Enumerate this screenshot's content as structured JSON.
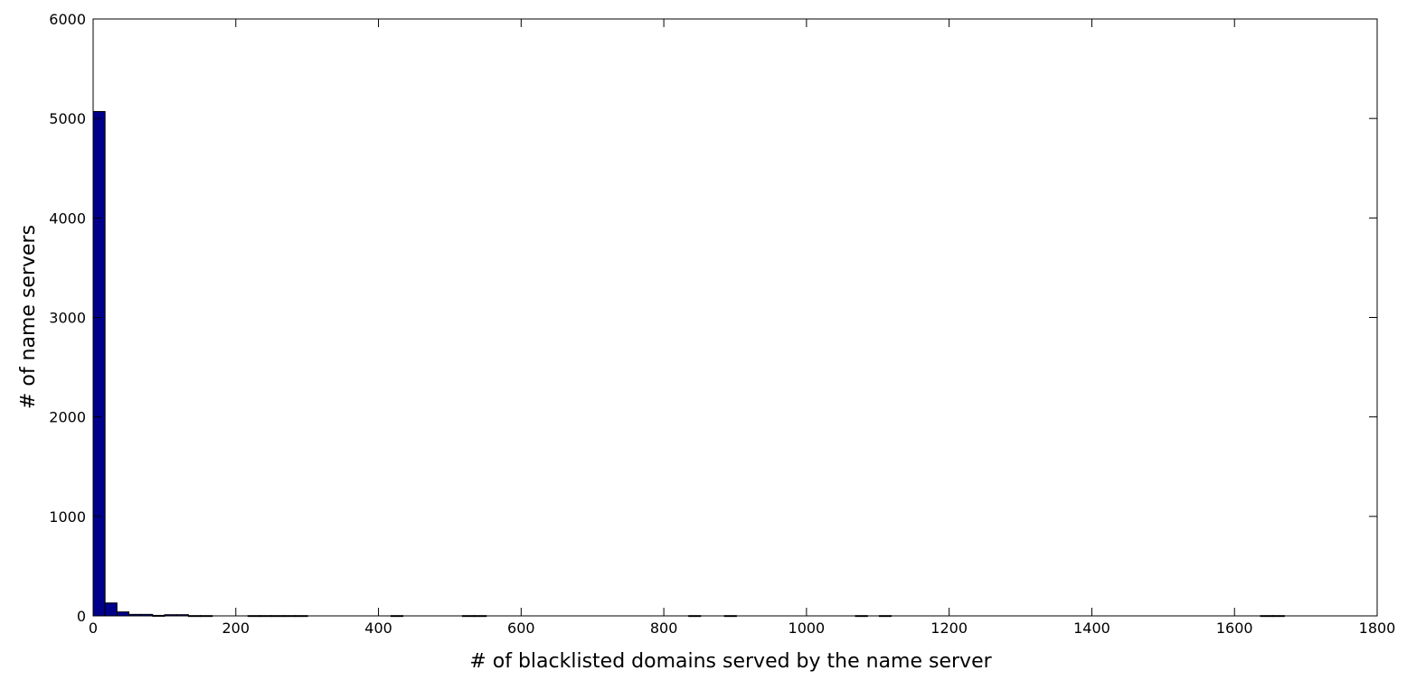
{
  "chart_data": {
    "type": "bar",
    "title": "",
    "xlabel": "# of blacklisted domains served by the name server",
    "ylabel": "# of name servers",
    "xlim": [
      0,
      1800
    ],
    "ylim": [
      0,
      6000
    ],
    "xticks": [
      0,
      200,
      400,
      600,
      800,
      1000,
      1200,
      1400,
      1600,
      1800
    ],
    "yticks": [
      0,
      1000,
      2000,
      3000,
      4000,
      5000,
      6000
    ],
    "grid": false,
    "bin_width": 16.7,
    "bar_color": "#00008b",
    "bars": [
      {
        "x0": 0,
        "value": 5070
      },
      {
        "x0": 16.7,
        "value": 130
      },
      {
        "x0": 33.4,
        "value": 40
      },
      {
        "x0": 50.1,
        "value": 15
      },
      {
        "x0": 66.8,
        "value": 15
      },
      {
        "x0": 83.5,
        "value": 5
      },
      {
        "x0": 100.2,
        "value": 12
      },
      {
        "x0": 116.9,
        "value": 12
      },
      {
        "x0": 133.6,
        "value": 3
      },
      {
        "x0": 150.3,
        "value": 3
      },
      {
        "x0": 217.1,
        "value": 3
      },
      {
        "x0": 233.8,
        "value": 3
      },
      {
        "x0": 250.5,
        "value": 3
      },
      {
        "x0": 267.2,
        "value": 3
      },
      {
        "x0": 283.9,
        "value": 3
      },
      {
        "x0": 417.5,
        "value": 3
      },
      {
        "x0": 517.7,
        "value": 3
      },
      {
        "x0": 534.4,
        "value": 3
      },
      {
        "x0": 834.9,
        "value": 3
      },
      {
        "x0": 885.0,
        "value": 3
      },
      {
        "x0": 1068.7,
        "value": 3
      },
      {
        "x0": 1102.1,
        "value": 3
      },
      {
        "x0": 1636.5,
        "value": 3
      },
      {
        "x0": 1653.2,
        "value": 3
      }
    ]
  }
}
